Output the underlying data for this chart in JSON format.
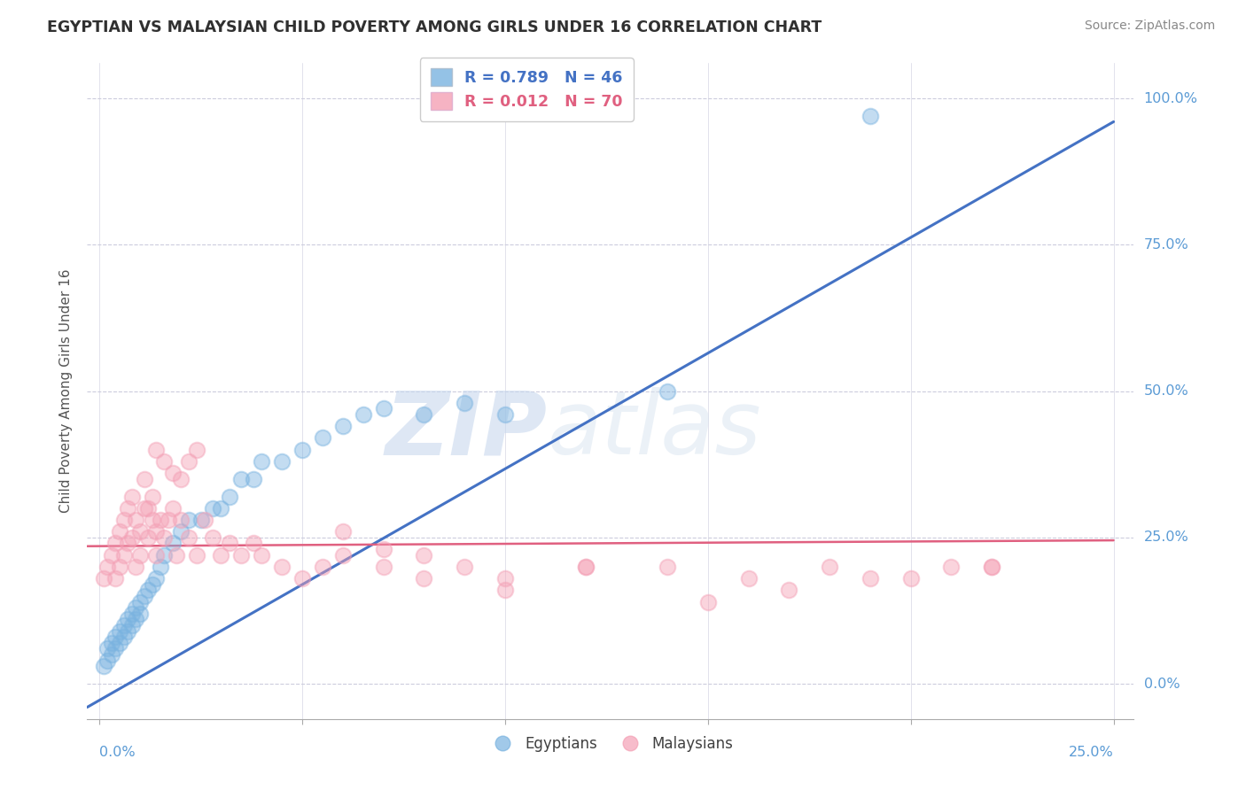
{
  "title": "EGYPTIAN VS MALAYSIAN CHILD POVERTY AMONG GIRLS UNDER 16 CORRELATION CHART",
  "source": "Source: ZipAtlas.com",
  "ylabel": "Child Poverty Among Girls Under 16",
  "legend_blue": "R = 0.789   N = 46",
  "legend_pink": "R = 0.012   N = 70",
  "legend_blue_label": "Egyptians",
  "legend_pink_label": "Malaysians",
  "blue_color": "#7ab3e0",
  "pink_color": "#f4a0b5",
  "blue_line_color": "#4472c4",
  "pink_line_color": "#e06080",
  "watermark_zip": "ZIP",
  "watermark_atlas": "atlas",
  "background_color": "#ffffff",
  "grid_color": "#ccccdd",
  "title_color": "#303030",
  "axis_label_color": "#5b9bd5",
  "blue_scatter_x": [
    0.001,
    0.002,
    0.002,
    0.003,
    0.003,
    0.004,
    0.004,
    0.005,
    0.005,
    0.006,
    0.006,
    0.007,
    0.007,
    0.008,
    0.008,
    0.009,
    0.009,
    0.01,
    0.01,
    0.011,
    0.012,
    0.013,
    0.014,
    0.015,
    0.016,
    0.018,
    0.02,
    0.022,
    0.025,
    0.028,
    0.03,
    0.032,
    0.035,
    0.038,
    0.04,
    0.045,
    0.05,
    0.055,
    0.06,
    0.065,
    0.07,
    0.08,
    0.09,
    0.1,
    0.14,
    0.19
  ],
  "blue_scatter_y": [
    0.03,
    0.04,
    0.06,
    0.05,
    0.07,
    0.06,
    0.08,
    0.07,
    0.09,
    0.08,
    0.1,
    0.09,
    0.11,
    0.1,
    0.12,
    0.11,
    0.13,
    0.12,
    0.14,
    0.15,
    0.16,
    0.17,
    0.18,
    0.2,
    0.22,
    0.24,
    0.26,
    0.28,
    0.28,
    0.3,
    0.3,
    0.32,
    0.35,
    0.35,
    0.38,
    0.38,
    0.4,
    0.42,
    0.44,
    0.46,
    0.47,
    0.46,
    0.48,
    0.46,
    0.5,
    0.97
  ],
  "pink_scatter_x": [
    0.001,
    0.002,
    0.003,
    0.004,
    0.004,
    0.005,
    0.005,
    0.006,
    0.006,
    0.007,
    0.007,
    0.008,
    0.008,
    0.009,
    0.009,
    0.01,
    0.01,
    0.011,
    0.011,
    0.012,
    0.012,
    0.013,
    0.013,
    0.014,
    0.014,
    0.015,
    0.016,
    0.017,
    0.018,
    0.019,
    0.02,
    0.022,
    0.024,
    0.026,
    0.028,
    0.03,
    0.032,
    0.035,
    0.038,
    0.04,
    0.045,
    0.05,
    0.055,
    0.06,
    0.07,
    0.08,
    0.09,
    0.1,
    0.12,
    0.14,
    0.16,
    0.18,
    0.2,
    0.21,
    0.22,
    0.06,
    0.07,
    0.08,
    0.1,
    0.12,
    0.014,
    0.016,
    0.018,
    0.02,
    0.022,
    0.024,
    0.15,
    0.17,
    0.19,
    0.22
  ],
  "pink_scatter_y": [
    0.18,
    0.2,
    0.22,
    0.18,
    0.24,
    0.2,
    0.26,
    0.22,
    0.28,
    0.24,
    0.3,
    0.25,
    0.32,
    0.2,
    0.28,
    0.22,
    0.26,
    0.3,
    0.35,
    0.25,
    0.3,
    0.28,
    0.32,
    0.22,
    0.26,
    0.28,
    0.25,
    0.28,
    0.3,
    0.22,
    0.28,
    0.25,
    0.22,
    0.28,
    0.25,
    0.22,
    0.24,
    0.22,
    0.24,
    0.22,
    0.2,
    0.18,
    0.2,
    0.22,
    0.2,
    0.18,
    0.2,
    0.18,
    0.2,
    0.2,
    0.18,
    0.2,
    0.18,
    0.2,
    0.2,
    0.26,
    0.23,
    0.22,
    0.16,
    0.2,
    0.4,
    0.38,
    0.36,
    0.35,
    0.38,
    0.4,
    0.14,
    0.16,
    0.18,
    0.2
  ],
  "blue_line_x": [
    -0.003,
    0.25
  ],
  "blue_line_y": [
    -0.04,
    0.96
  ],
  "pink_line_x": [
    -0.003,
    0.25
  ],
  "pink_line_y": [
    0.235,
    0.245
  ],
  "xlim": [
    -0.003,
    0.255
  ],
  "ylim": [
    -0.06,
    1.06
  ],
  "yticks": [
    0.0,
    0.25,
    0.5,
    0.75,
    1.0
  ],
  "ytick_labels": [
    "0.0%",
    "25.0%",
    "50.0%",
    "75.0%",
    "100.0%"
  ]
}
